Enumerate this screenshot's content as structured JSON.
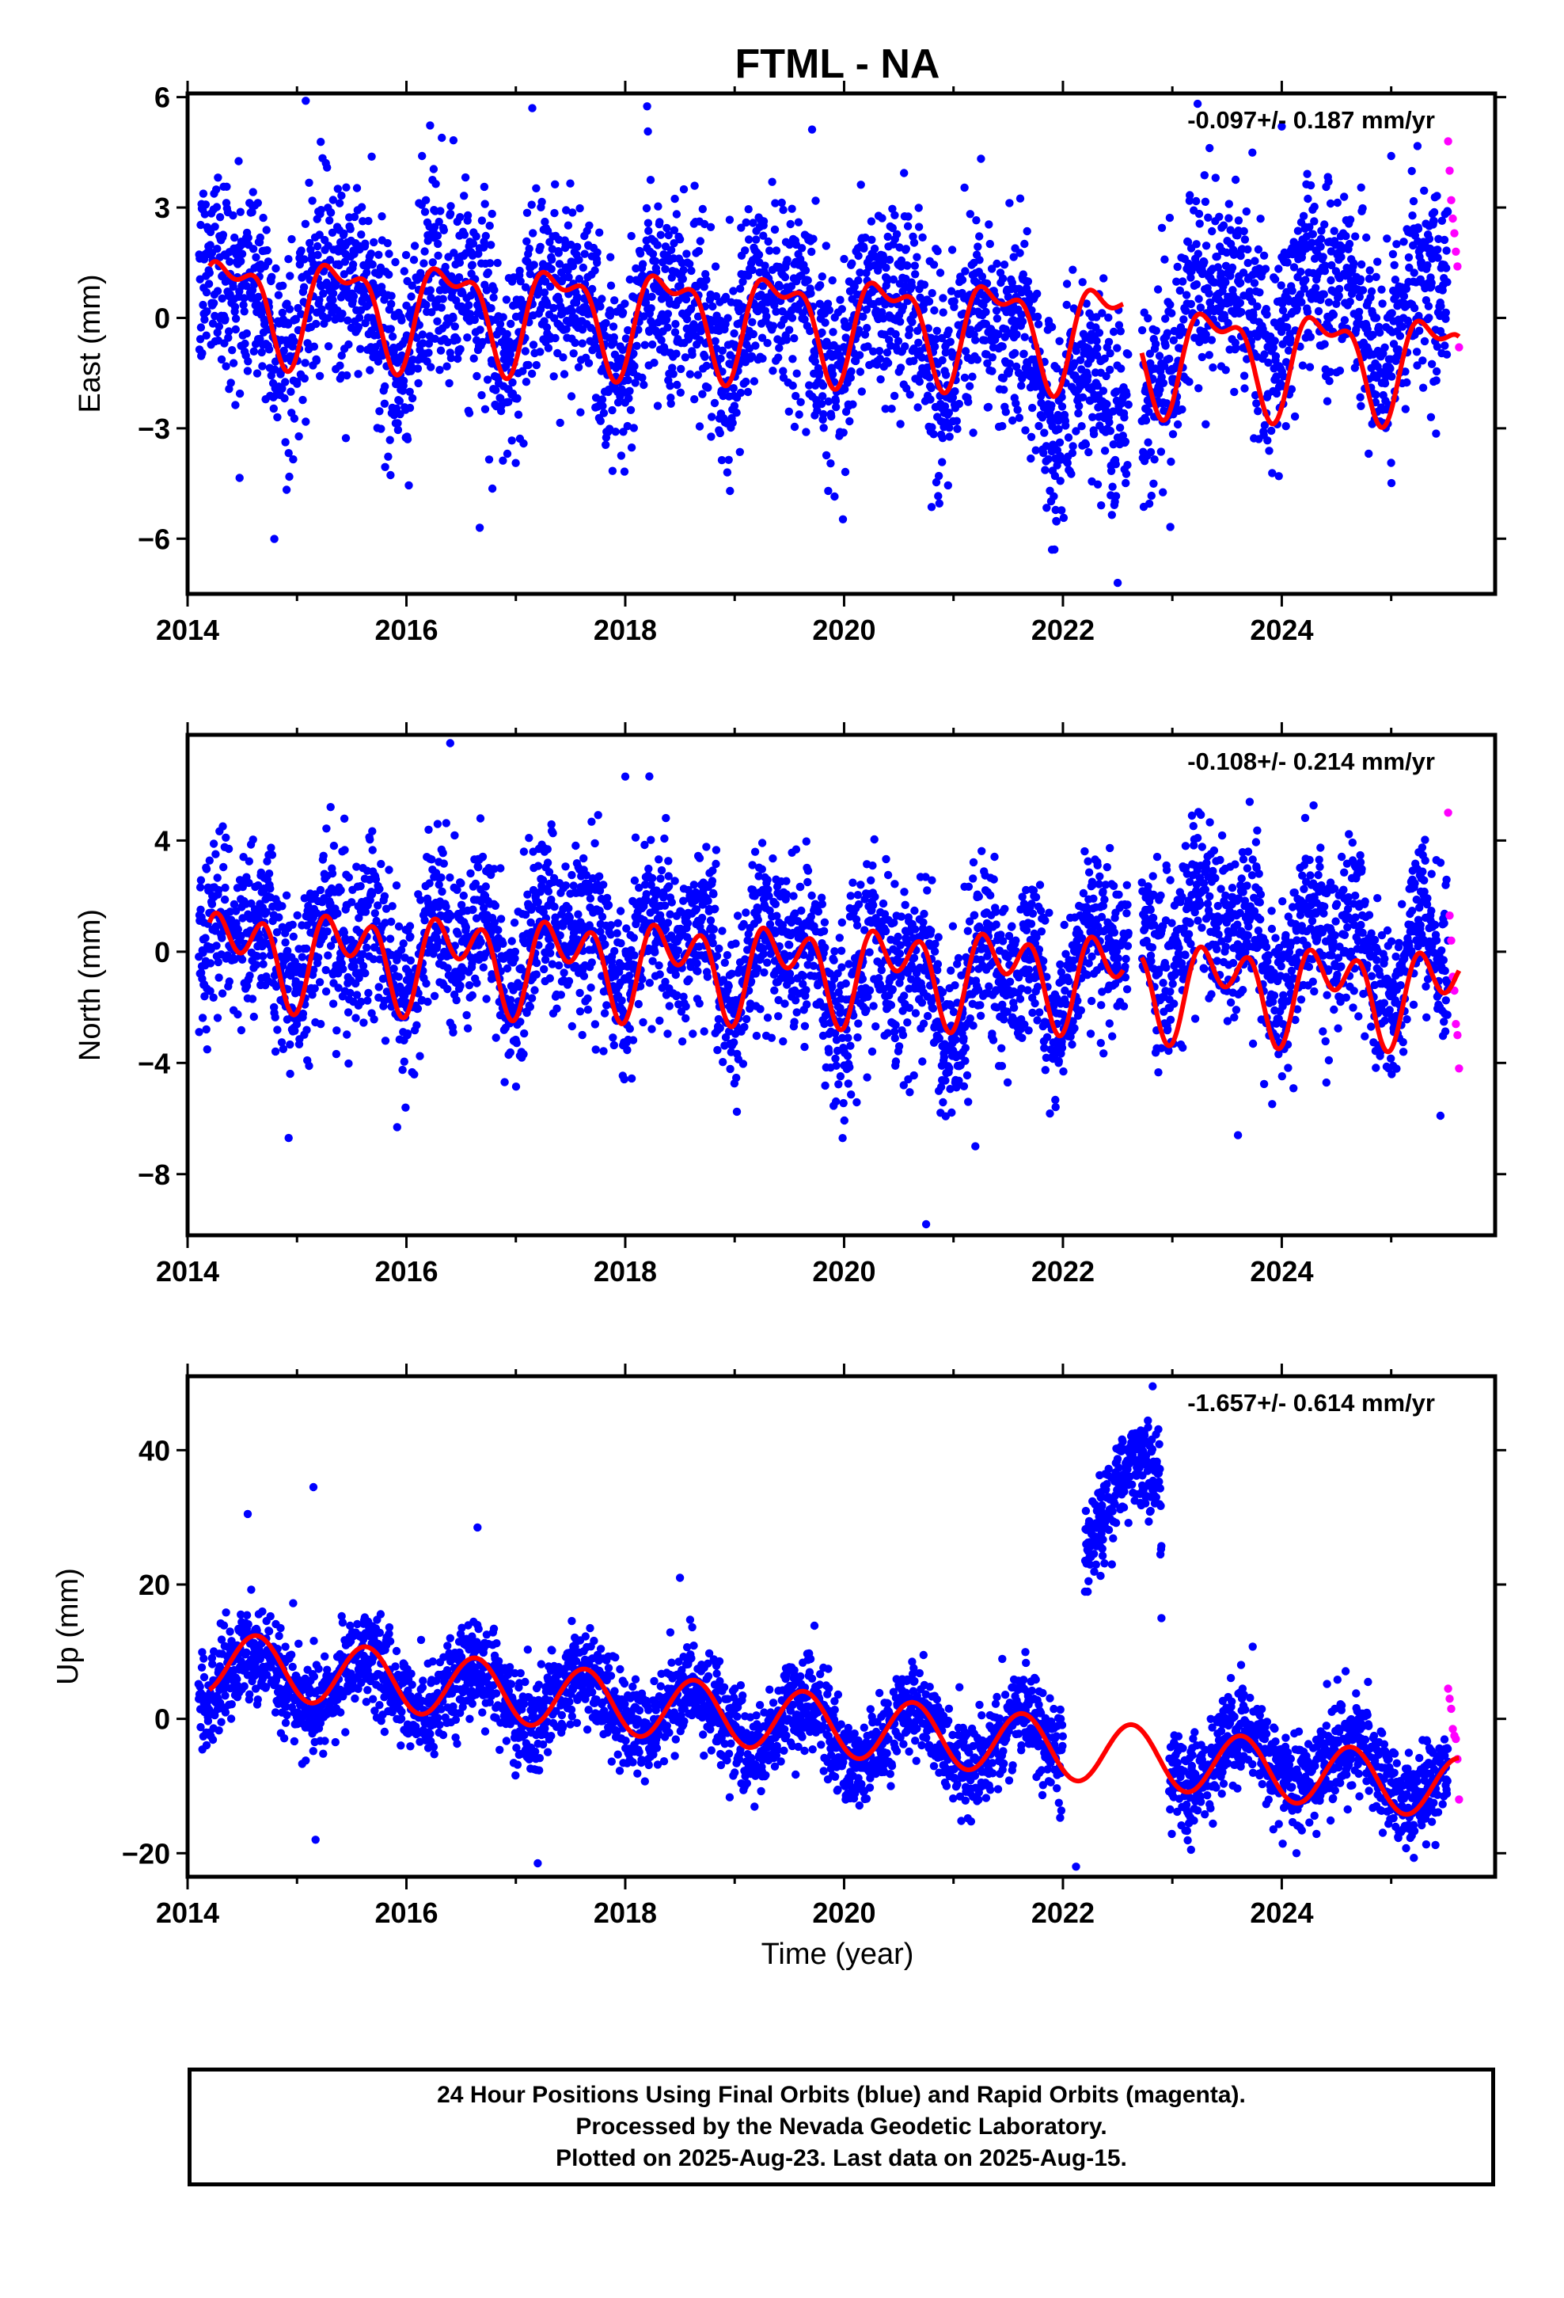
{
  "figure": {
    "title": "FTML - NA",
    "xlabel": "Time (year)",
    "colors": {
      "final_orbits": "#0000ff",
      "rapid_orbits": "#ff00ff",
      "model_fit": "#ff0000",
      "frame": "#000000"
    }
  },
  "caption": {
    "lines": [
      "24 Hour Positions Using Final Orbits (blue) and Rapid Orbits (magenta).",
      "Processed by the Nevada Geodetic Laboratory.",
      "Plotted on 2025-Aug-23. Last data on 2025-Aug-15."
    ]
  },
  "chart_data": [
    {
      "type": "scatter",
      "ylabel": "East (mm)",
      "rate_annotation": "-0.097+/- 0.187 mm/yr",
      "xlim": [
        2014.0,
        2025.95
      ],
      "ylim": [
        -7.5,
        6.1
      ],
      "xticks": [
        "2014",
        "2016",
        "2018",
        "2020",
        "2022",
        "2024"
      ],
      "yticks": [
        "6",
        "3",
        "0",
        "-3",
        "-6"
      ],
      "series": [
        {
          "role": "final_orbits",
          "x_start": 2014.1,
          "x_end": 2025.52,
          "scatter": 1.35,
          "gaps": [
            [
              2022.6,
              2022.72
            ]
          ],
          "segments": [
            [
              2014.1,
              0.6
            ],
            [
              2016.5,
              0.2
            ],
            [
              2019.0,
              -0.1
            ],
            [
              2021.0,
              -0.2
            ],
            [
              2022.0,
              -1.4
            ],
            [
              2022.55,
              -3.5
            ],
            [
              2022.9,
              -0.3
            ],
            [
              2024.0,
              0.6
            ],
            [
              2025.52,
              0.0
            ]
          ],
          "outliers": [
            [
              2015.08,
              5.9
            ],
            [
              2017.15,
              5.7
            ],
            [
              2018.2,
              5.75
            ],
            [
              2016.67,
              -5.7
            ],
            [
              2022.5,
              -7.2
            ],
            [
              2021.9,
              -6.3
            ],
            [
              2024.0,
              5.2
            ],
            [
              2025.0,
              4.4
            ]
          ]
        },
        {
          "role": "rapid_orbits",
          "x_start": 2025.52,
          "x_end": 2025.62,
          "points": [
            4.8,
            4.0,
            3.2,
            2.7,
            2.3,
            1.8,
            1.4,
            -0.8
          ]
        },
        {
          "role": "model_fit",
          "segments": [
            [
              2014.2,
              2022.55
            ],
            [
              2022.72,
              2025.62
            ]
          ],
          "offset_by_segment": [
            0.45,
            -0.1
          ],
          "rate": -0.097,
          "annual_amplitude": 1.25,
          "annual_phase": 0.15,
          "semiannual_amplitude": 0.6,
          "semiannual_phase": 0.55
        }
      ]
    },
    {
      "type": "scatter",
      "ylabel": "North (mm)",
      "rate_annotation": "-0.108+/- 0.214 mm/yr",
      "xlim": [
        2014.0,
        2025.95
      ],
      "ylim": [
        -10.2,
        7.8
      ],
      "xticks": [
        "2014",
        "2016",
        "2018",
        "2020",
        "2022",
        "2024"
      ],
      "yticks": [
        "4",
        "0",
        "-4",
        "-8"
      ],
      "series": [
        {
          "role": "final_orbits",
          "x_start": 2014.1,
          "x_end": 2025.52,
          "scatter": 1.5,
          "gaps": [
            [
              2022.6,
              2022.72
            ]
          ],
          "segments": [
            [
              2014.1,
              0.3
            ],
            [
              2016.0,
              0.1
            ],
            [
              2018.0,
              0.4
            ],
            [
              2020.0,
              -0.6
            ],
            [
              2021.0,
              -1.3
            ],
            [
              2022.0,
              -0.6
            ],
            [
              2023.0,
              1.0
            ],
            [
              2024.0,
              0.3
            ],
            [
              2025.52,
              -0.3
            ]
          ],
          "outliers": [
            [
              2016.4,
              7.5
            ],
            [
              2018.0,
              6.3
            ],
            [
              2020.75,
              -9.8
            ],
            [
              2021.2,
              -7.0
            ],
            [
              2023.6,
              -6.6
            ],
            [
              2025.45,
              -5.9
            ]
          ]
        },
        {
          "role": "rapid_orbits",
          "x_start": 2025.52,
          "x_end": 2025.62,
          "points": [
            5.0,
            1.3,
            0.4,
            -0.9,
            -1.4,
            -2.6,
            -3.0,
            -4.2
          ]
        },
        {
          "role": "model_fit",
          "segments": [
            [
              2014.2,
              2022.55
            ],
            [
              2022.72,
              2025.62
            ]
          ],
          "offset_by_segment": [
            0.0,
            -0.25
          ],
          "rate": -0.108,
          "annual_amplitude": 1.1,
          "annual_phase": 0.2,
          "semiannual_amplitude": 1.1,
          "semiannual_phase": 0.1
        }
      ]
    },
    {
      "type": "scatter",
      "ylabel": "Up (mm)",
      "rate_annotation": "-1.657+/- 0.614 mm/yr",
      "xlim": [
        2014.0,
        2025.95
      ],
      "ylim": [
        -23.5,
        51.0
      ],
      "xticks": [
        "2014",
        "2016",
        "2018",
        "2020",
        "2022",
        "2024"
      ],
      "yticks": [
        "40",
        "20",
        "0",
        "-20"
      ],
      "series": [
        {
          "role": "final_orbits",
          "x_start": 2014.1,
          "x_end": 2025.52,
          "scatter": 3.5,
          "gaps": [
            [
              2022.0,
              2022.2
            ],
            [
              2022.9,
              2022.97
            ]
          ],
          "segments": [
            [
              2014.1,
              7.0
            ],
            [
              2016.0,
              5.0
            ],
            [
              2018.0,
              2.0
            ],
            [
              2020.0,
              -2.0
            ],
            [
              2022.0,
              -4.0
            ],
            [
              2022.2,
              29.0
            ],
            [
              2022.88,
              36.0
            ],
            [
              2022.97,
              -6.0
            ],
            [
              2024.0,
              -6.0
            ],
            [
              2025.52,
              -9.0
            ]
          ],
          "outliers": [
            [
              2015.15,
              34.5
            ],
            [
              2014.55,
              30.5
            ],
            [
              2016.65,
              28.5
            ],
            [
              2017.2,
              -21.5
            ],
            [
              2018.5,
              21.0
            ],
            [
              2022.12,
              -22.0
            ],
            [
              2022.82,
              49.5
            ],
            [
              2015.17,
              -18.0
            ],
            [
              2022.9,
              15.0
            ],
            [
              2019.0,
              -8.0
            ]
          ]
        },
        {
          "role": "rapid_orbits",
          "x_start": 2025.52,
          "x_end": 2025.62,
          "points": [
            4.5,
            3.0,
            1.5,
            -1.5,
            -2.5,
            -3.0,
            -6.0,
            -12.0
          ]
        },
        {
          "role": "model_fit",
          "segments": [
            [
              2014.2,
              2025.62
            ]
          ],
          "offset_by_segment": [
            8.5
          ],
          "rate": -1.657,
          "annual_amplitude": 4.6,
          "annual_phase": 0.38,
          "semiannual_amplitude": 0.0,
          "semiannual_phase": 0.0
        }
      ]
    }
  ]
}
